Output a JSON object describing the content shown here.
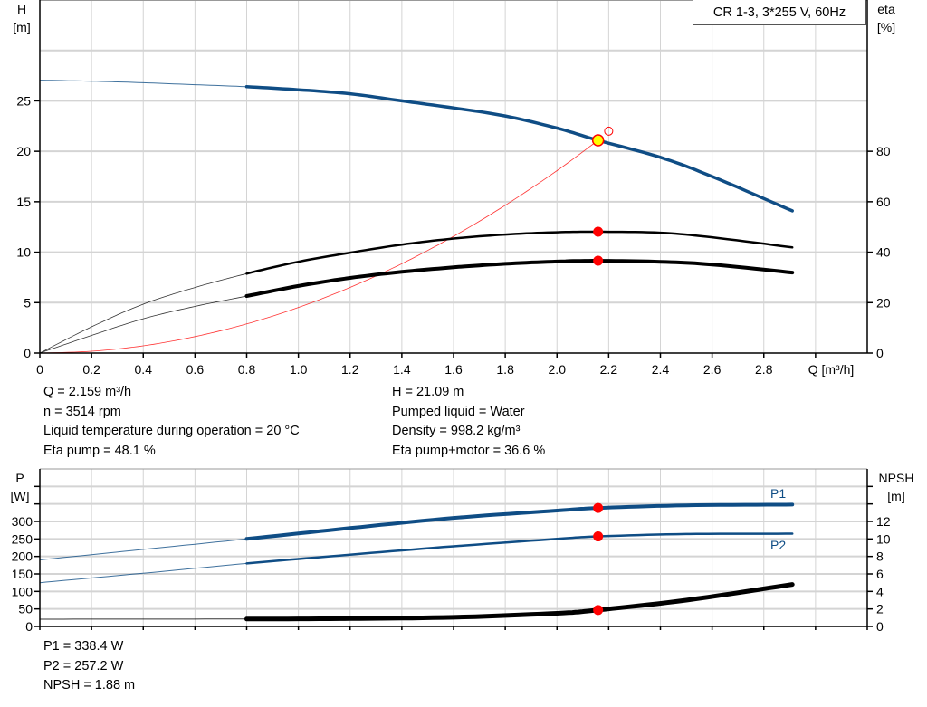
{
  "chart_data": [
    {
      "type": "line",
      "title": "CR 1-3, 3*255 V, 60Hz",
      "xlabel": "Q [m³/h]",
      "ylabel": "H\n[m]",
      "ylabel_left_lines": [
        "H",
        "[m]"
      ],
      "ylabel_right_lines": [
        "eta",
        "[%]"
      ],
      "xlim": [
        0,
        3.2
      ],
      "ylim": [
        0,
        35
      ],
      "ylim_right": [
        0,
        140
      ],
      "x_ticks": [
        "0",
        "0.2",
        "0.4",
        "0.6",
        "0.8",
        "1.0",
        "1.2",
        "1.4",
        "1.6",
        "1.8",
        "2.0",
        "2.2",
        "2.4",
        "2.6",
        "2.8"
      ],
      "y_ticks": [
        "0",
        "5",
        "10",
        "15",
        "20",
        "25"
      ],
      "y_right_ticks": [
        "0",
        "20",
        "40",
        "60",
        "80"
      ],
      "grid": true,
      "series": [
        {
          "key": "H",
          "axis": "left",
          "color": "#0f4d85",
          "x": [
            0,
            0.2,
            0.4,
            0.6,
            0.8,
            1.0,
            1.2,
            1.4,
            1.6,
            1.8,
            2.0,
            2.159,
            2.4,
            2.6,
            2.91
          ],
          "y": [
            27.05,
            26.95,
            26.8,
            26.6,
            26.4,
            26.1,
            25.7,
            25.0,
            24.3,
            23.5,
            22.3,
            21.09,
            19.4,
            17.5,
            14.1
          ]
        },
        {
          "key": "eta_pump",
          "axis": "right",
          "color": "#000000",
          "x": [
            0,
            0.2,
            0.4,
            0.6,
            0.8,
            1.0,
            1.2,
            1.4,
            1.6,
            1.8,
            2.0,
            2.159,
            2.4,
            2.6,
            2.91
          ],
          "y": [
            0,
            10.4,
            19.4,
            26.0,
            31.5,
            36.2,
            39.8,
            43.0,
            45.4,
            47.0,
            47.9,
            48.1,
            47.7,
            45.9,
            41.9
          ]
        },
        {
          "key": "eta_pump_motor",
          "axis": "right",
          "color": "#000000",
          "x": [
            0,
            0.2,
            0.4,
            0.6,
            0.8,
            1.0,
            1.2,
            1.4,
            1.6,
            1.8,
            2.0,
            2.159,
            2.4,
            2.6,
            2.91
          ],
          "y": [
            0,
            7.0,
            13.6,
            18.5,
            22.6,
            26.6,
            29.8,
            32.2,
            34.0,
            35.4,
            36.3,
            36.6,
            36.2,
            35.1,
            31.9
          ]
        },
        {
          "key": "system_curve",
          "axis": "left",
          "color": "#ff0000",
          "x": [
            0,
            0.2,
            0.4,
            0.6,
            0.8,
            1.0,
            1.2,
            1.4,
            1.6,
            1.8,
            2.0,
            2.159
          ],
          "y": [
            0,
            0.18,
            0.72,
            1.63,
            2.89,
            4.52,
            6.51,
            8.86,
            11.57,
            14.65,
            18.08,
            21.09
          ]
        }
      ],
      "duty_point": {
        "q": 2.159,
        "h": 21.09,
        "eta_pump": 48.1,
        "eta_pump_motor": 36.6
      },
      "requested_point": {
        "q": 2.2,
        "h": 22.0
      }
    },
    {
      "type": "line",
      "ylabel_left_lines": [
        "P",
        "[W]"
      ],
      "ylabel_right_lines": [
        "NPSH",
        "[m]"
      ],
      "xlim": [
        0,
        3.2
      ],
      "ylim": [
        0,
        450
      ],
      "ylim_right": [
        0,
        18
      ],
      "y_ticks": [
        "0",
        "50",
        "100",
        "150",
        "200",
        "250",
        "300"
      ],
      "y_right_ticks": [
        "0",
        "2",
        "4",
        "6",
        "8",
        "10",
        "12"
      ],
      "grid": true,
      "series": [
        {
          "key": "P1",
          "name": "P1",
          "axis": "left",
          "color": "#0f4d85",
          "x": [
            0,
            0.4,
            0.8,
            1.2,
            1.6,
            2.0,
            2.159,
            2.5,
            2.91
          ],
          "y": [
            190,
            220,
            250,
            281,
            310,
            331,
            338.4,
            346,
            348
          ]
        },
        {
          "key": "P2",
          "name": "P2",
          "axis": "left",
          "color": "#0f4d85",
          "x": [
            0,
            0.4,
            0.8,
            1.2,
            1.6,
            2.0,
            2.159,
            2.5,
            2.91
          ],
          "y": [
            125,
            152,
            180,
            205,
            229,
            250,
            257.2,
            264,
            265
          ]
        },
        {
          "key": "NPSH",
          "axis": "right",
          "color": "#000000",
          "x": [
            0,
            0.4,
            0.8,
            1.2,
            1.6,
            2.0,
            2.159,
            2.5,
            2.91
          ],
          "y": [
            0.83,
            0.84,
            0.85,
            0.9,
            1.05,
            1.5,
            1.88,
            3.0,
            4.8
          ]
        }
      ],
      "duty_point": {
        "q": 2.159,
        "p1": 338.4,
        "p2": 257.2,
        "npsh": 1.88
      }
    }
  ],
  "info_top": {
    "q": "Q = 2.159 m³/h",
    "n": "n = 3514 rpm",
    "temp": "Liquid temperature during operation = 20 °C",
    "eta_pump": "Eta pump = 48.1 %",
    "h": "H = 21.09 m",
    "liquid": "Pumped liquid = Water",
    "density": "Density = 998.2 kg/m³",
    "eta_pm": "Eta pump+motor = 36.6 %"
  },
  "info_bottom": {
    "p1": "P1 = 338.4 W",
    "p2": "P2 = 257.2 W",
    "npsh": "NPSH = 1.88 m"
  },
  "colors": {
    "curve_blue": "#0f4d85",
    "duty_marker": "#ff0000",
    "duty_fill": "#ffff00",
    "grid": "#d4d4d4"
  }
}
